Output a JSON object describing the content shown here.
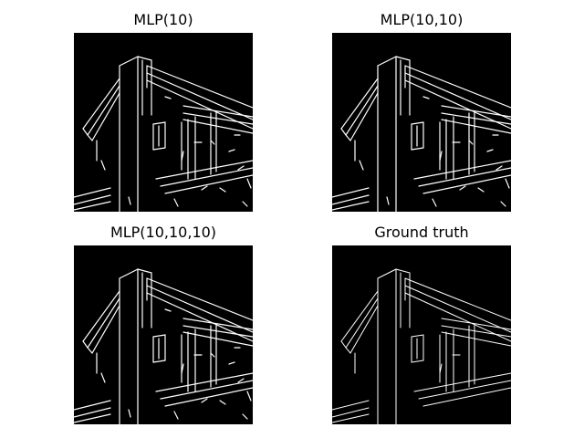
{
  "figure": {
    "background": "#ffffff",
    "panels": [
      {
        "id": "p1",
        "title": "MLP(10)",
        "style": "noisy"
      },
      {
        "id": "p2",
        "title": "MLP(10,10)",
        "style": "noisy"
      },
      {
        "id": "p3",
        "title": "MLP(10,10,10)",
        "style": "noisy"
      },
      {
        "id": "p4",
        "title": "Ground truth",
        "style": "clean"
      }
    ],
    "image_colors": {
      "background": "#000000",
      "edges": "#ffffff"
    }
  }
}
